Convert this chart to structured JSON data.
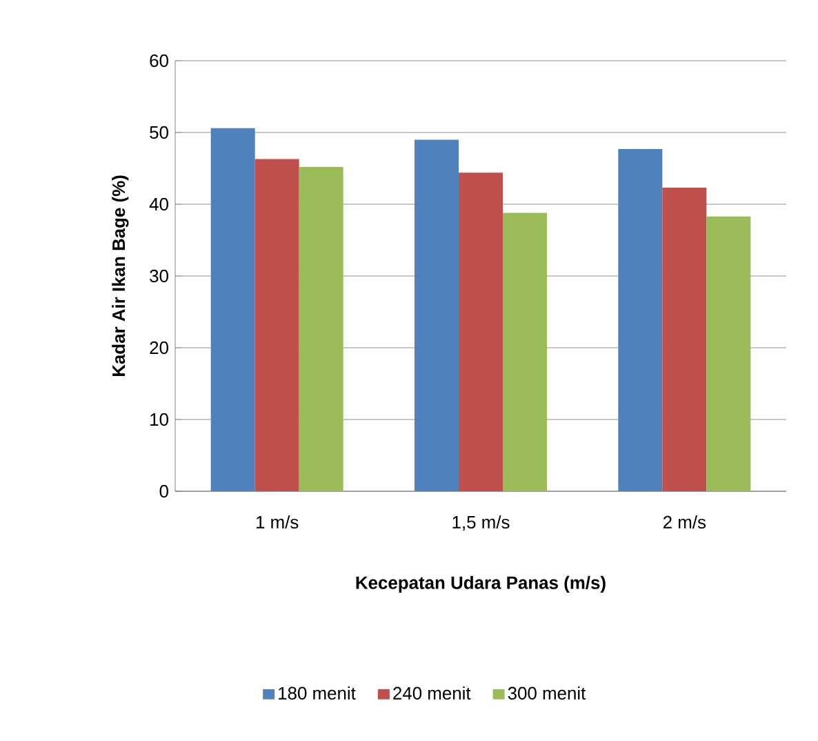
{
  "chart_data": {
    "type": "bar",
    "xlabel": "Kecepatan Udara Panas (m/s)",
    "ylabel": "Kadar Air Ikan Bage (%)",
    "categories": [
      "1 m/s",
      "1,5 m/s",
      "2 m/s"
    ],
    "series": [
      {
        "name": "180 menit",
        "color": "#4f81bd",
        "values": [
          50.6,
          49.0,
          47.7
        ]
      },
      {
        "name": "240 menit",
        "color": "#c0504d",
        "values": [
          46.3,
          44.4,
          42.3
        ]
      },
      {
        "name": "300 menit",
        "color": "#9bbb59",
        "values": [
          45.2,
          38.8,
          38.3
        ]
      }
    ],
    "ylim": [
      0,
      60
    ],
    "yticks": [
      0,
      10,
      20,
      30,
      40,
      50,
      60
    ],
    "grid": "y",
    "legend": "bottom"
  }
}
